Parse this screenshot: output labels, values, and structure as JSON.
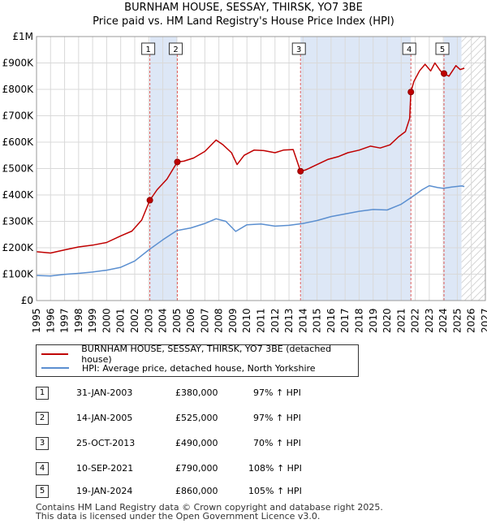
{
  "header": {
    "title": "BURNHAM HOUSE, SESSAY, THIRSK, YO7 3BE",
    "subtitle": "Price paid vs. HM Land Registry's House Price Index (HPI)"
  },
  "colors": {
    "property": "#c00000",
    "hpi": "#5b8fd0",
    "shade": "#dde7f6",
    "grid": "#d9d9d9",
    "marker_line": "#e06060"
  },
  "legend": {
    "property_label": "BURNHAM HOUSE, SESSAY, THIRSK, YO7 3BE (detached house)",
    "hpi_label": "HPI: Average price, detached house, North Yorkshire"
  },
  "chart_data": {
    "type": "line",
    "xlim": [
      1995,
      2027
    ],
    "ylim": [
      0,
      1000000
    ],
    "x_ticks": [
      "1995",
      "1996",
      "1997",
      "1998",
      "1999",
      "2000",
      "2001",
      "2002",
      "2003",
      "2004",
      "2005",
      "2006",
      "2007",
      "2008",
      "2009",
      "2010",
      "2011",
      "2012",
      "2013",
      "2014",
      "2015",
      "2016",
      "2017",
      "2018",
      "2019",
      "2020",
      "2021",
      "2022",
      "2023",
      "2024",
      "2025",
      "2026",
      "2027"
    ],
    "y_ticks": [
      {
        "value": 0,
        "label": "£0"
      },
      {
        "value": 100000,
        "label": "£100K"
      },
      {
        "value": 200000,
        "label": "£200K"
      },
      {
        "value": 300000,
        "label": "£300K"
      },
      {
        "value": 400000,
        "label": "£400K"
      },
      {
        "value": 500000,
        "label": "£500K"
      },
      {
        "value": 600000,
        "label": "£600K"
      },
      {
        "value": 700000,
        "label": "£700K"
      },
      {
        "value": 800000,
        "label": "£800K"
      },
      {
        "value": 900000,
        "label": "£900K"
      },
      {
        "value": 1000000,
        "label": "£1M"
      }
    ],
    "shaded_ranges": [
      [
        2003.08,
        2005.04
      ],
      [
        2013.82,
        2021.69
      ],
      [
        2024.05,
        2025.3
      ]
    ],
    "forecast_start": 2025.3,
    "series": [
      {
        "name": "BURNHAM HOUSE, SESSAY, THIRSK, YO7 3BE (detached house)",
        "x": [
          1995,
          1996,
          1997,
          1998,
          1999,
          2000,
          2001,
          2001.8,
          2002.5,
          2003.08,
          2003.6,
          2004.3,
          2005.04,
          2005.5,
          2006.2,
          2007,
          2007.8,
          2008.3,
          2008.9,
          2009.3,
          2009.8,
          2010.5,
          2011.2,
          2012,
          2012.6,
          2013.3,
          2013.82,
          2014.2,
          2015,
          2015.8,
          2016.5,
          2017.2,
          2018,
          2018.8,
          2019.5,
          2020.2,
          2020.8,
          2021.3,
          2021.6,
          2021.69,
          2021.9,
          2022.3,
          2022.7,
          2023.1,
          2023.4,
          2023.8,
          2024.05,
          2024.4,
          2024.9,
          2025.2,
          2025.5
        ],
        "y": [
          185000,
          180000,
          192000,
          203000,
          210000,
          220000,
          245000,
          263000,
          305000,
          380000,
          420000,
          460000,
          525000,
          528000,
          540000,
          565000,
          608000,
          590000,
          560000,
          515000,
          550000,
          570000,
          568000,
          560000,
          570000,
          572000,
          490000,
          495000,
          515000,
          535000,
          545000,
          560000,
          570000,
          585000,
          578000,
          590000,
          620000,
          640000,
          690000,
          790000,
          830000,
          870000,
          895000,
          870000,
          900000,
          870000,
          860000,
          850000,
          890000,
          875000,
          880000
        ]
      },
      {
        "name": "HPI: Average price, detached house, North Yorkshire",
        "x": [
          1995,
          1996,
          1997,
          1998,
          1999,
          2000,
          2001,
          2002,
          2003,
          2004,
          2005,
          2006,
          2007,
          2007.8,
          2008.5,
          2009.2,
          2010,
          2011,
          2012,
          2013,
          2014,
          2015,
          2016,
          2017,
          2018,
          2019,
          2020,
          2021,
          2021.7,
          2022.5,
          2023,
          2023.6,
          2024,
          2024.6,
          2025.3,
          2025.5
        ],
        "y": [
          95000,
          93000,
          99000,
          103000,
          108000,
          115000,
          126000,
          150000,
          192000,
          230000,
          265000,
          275000,
          292000,
          310000,
          300000,
          262000,
          287000,
          290000,
          282000,
          285000,
          292000,
          303000,
          318000,
          328000,
          338000,
          345000,
          343000,
          365000,
          390000,
          420000,
          435000,
          428000,
          425000,
          430000,
          434000,
          432000
        ]
      }
    ],
    "sales": [
      {
        "id": "1",
        "date": "31-JAN-2003",
        "x": 2003.08,
        "price": 380000,
        "price_label": "£380,000",
        "hpi_label": "97% ↑ HPI"
      },
      {
        "id": "2",
        "date": "14-JAN-2005",
        "x": 2005.04,
        "price": 525000,
        "price_label": "£525,000",
        "hpi_label": "97% ↑ HPI"
      },
      {
        "id": "3",
        "date": "25-OCT-2013",
        "x": 2013.82,
        "price": 490000,
        "price_label": "£490,000",
        "hpi_label": "70% ↑ HPI"
      },
      {
        "id": "4",
        "date": "10-SEP-2021",
        "x": 2021.69,
        "price": 790000,
        "price_label": "£790,000",
        "hpi_label": "108% ↑ HPI"
      },
      {
        "id": "5",
        "date": "19-JAN-2024",
        "x": 2024.05,
        "price": 860000,
        "price_label": "£860,000",
        "hpi_label": "105% ↑ HPI"
      }
    ]
  },
  "footer": {
    "line1": "Contains HM Land Registry data © Crown copyright and database right 2025.",
    "line2": "This data is licensed under the Open Government Licence v3.0."
  }
}
